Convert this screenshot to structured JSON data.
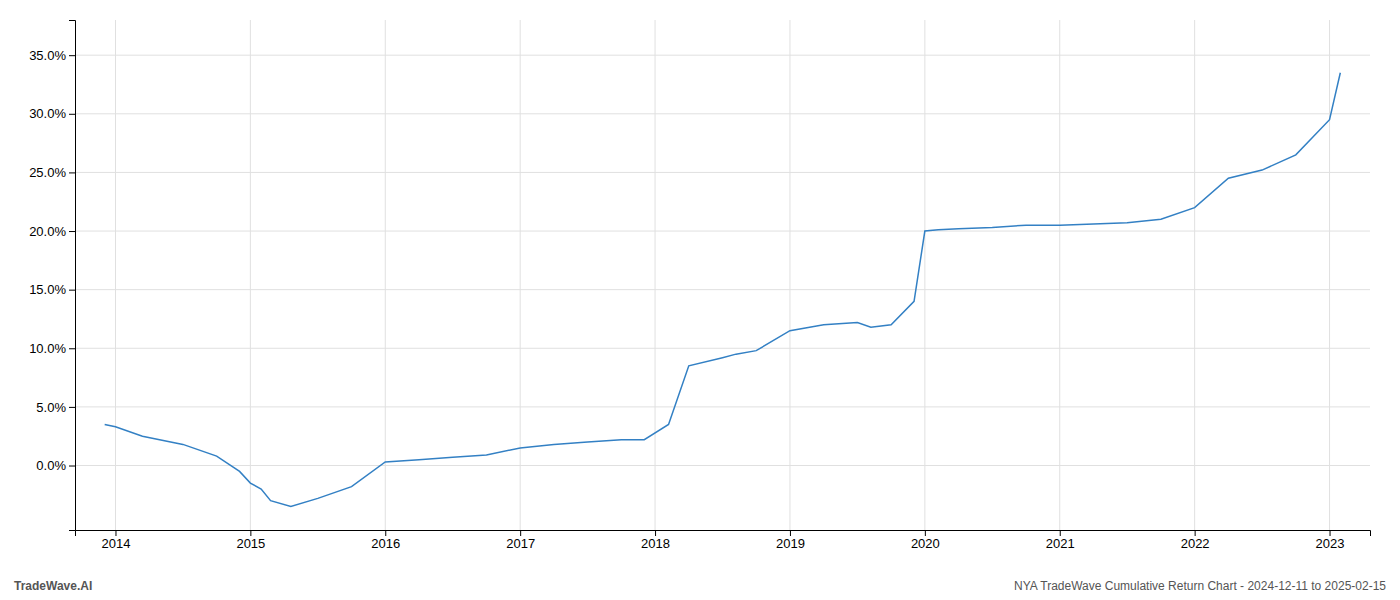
{
  "chart_data": {
    "type": "line",
    "x": [
      2013.92,
      2014.0,
      2014.2,
      2014.5,
      2014.75,
      2014.92,
      2015.0,
      2015.08,
      2015.15,
      2015.3,
      2015.5,
      2015.75,
      2016.0,
      2016.25,
      2016.5,
      2016.75,
      2017.0,
      2017.25,
      2017.5,
      2017.75,
      2017.92,
      2018.1,
      2018.25,
      2018.5,
      2018.6,
      2018.75,
      2019.0,
      2019.25,
      2019.5,
      2019.6,
      2019.75,
      2019.92,
      2020.0,
      2020.1,
      2020.25,
      2020.5,
      2020.75,
      2021.0,
      2021.25,
      2021.5,
      2021.75,
      2022.0,
      2022.25,
      2022.5,
      2022.75,
      2023.0,
      2023.08
    ],
    "values": [
      3.5,
      3.3,
      2.5,
      1.8,
      0.8,
      -0.5,
      -1.5,
      -2.0,
      -3.0,
      -3.5,
      -2.8,
      -1.8,
      0.3,
      0.5,
      0.7,
      0.9,
      1.5,
      1.8,
      2.0,
      2.2,
      2.2,
      3.5,
      8.5,
      9.2,
      9.5,
      9.8,
      11.5,
      12.0,
      12.2,
      11.8,
      12.0,
      14.0,
      20.0,
      20.1,
      20.2,
      20.3,
      20.5,
      20.5,
      20.6,
      20.7,
      21.0,
      22.0,
      24.5,
      25.2,
      26.5,
      29.5,
      33.5
    ],
    "color": "#3380c4",
    "xlim": [
      2013.7,
      2023.3
    ],
    "ylim": [
      -5.5,
      38.0
    ],
    "xticks": [
      2014,
      2015,
      2016,
      2017,
      2018,
      2019,
      2020,
      2021,
      2022,
      2023
    ],
    "yticks": [
      {
        "value": 0.0,
        "label": "0.0%"
      },
      {
        "value": 5.0,
        "label": "5.0%"
      },
      {
        "value": 10.0,
        "label": "10.0%"
      },
      {
        "value": 15.0,
        "label": "15.0%"
      },
      {
        "value": 20.0,
        "label": "20.0%"
      },
      {
        "value": 25.0,
        "label": "25.0%"
      },
      {
        "value": 30.0,
        "label": "30.0%"
      },
      {
        "value": 35.0,
        "label": "35.0%"
      }
    ],
    "grid": true,
    "annotations": [
      "TradeWave.AI",
      "NYA TradeWave Cumulative Return Chart - 2024-12-11 to 2025-02-15"
    ]
  }
}
